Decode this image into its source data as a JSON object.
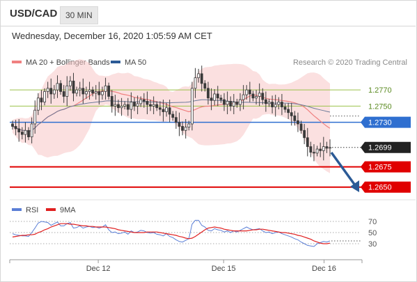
{
  "header": {
    "symbol": "USD/CAD",
    "timeframe": "30 MIN",
    "timestamp": "Wednesday, December 16, 2020 1:05:59 AM CET"
  },
  "legend": {
    "ma20": "MA 20 + Bollinger Bands",
    "ma50": "MA 50",
    "credit": "Research © 2020 Trading Central",
    "rsi": "RSI",
    "rsi_ma": "9MA"
  },
  "colors": {
    "up": "#3a3a3a",
    "down": "#3a3a3a",
    "bollinger": "#f7c6c6",
    "ma20": "#f08080",
    "ma50": "#6b7a99",
    "green_level": "#9bc24a",
    "blue_level": "#2f6fd0",
    "red_level": "#e00000",
    "arrow": "#2b5a96",
    "rsi": "#5b7fd6",
    "rsi_ma": "#e02020"
  },
  "chart_data": [
    {
      "type": "candlestick",
      "title": "USD/CAD",
      "ylim": [
        1.2636,
        1.2826
      ],
      "x_tick_labels": [
        "Dec 12",
        "Dec 15",
        "Dec 16"
      ],
      "levels": [
        {
          "value": 1.277,
          "label": "1.2770",
          "kind": "resistance"
        },
        {
          "value": 1.275,
          "label": "1.2750",
          "kind": "resistance"
        },
        {
          "value": 1.273,
          "label": "1.2730",
          "kind": "pivot"
        },
        {
          "value": 1.2699,
          "label": "1.2699",
          "kind": "last"
        },
        {
          "value": 1.2675,
          "label": "1.2675",
          "kind": "support"
        },
        {
          "value": 1.265,
          "label": "1.2650",
          "kind": "support"
        }
      ],
      "close": [
        1.2725,
        1.2722,
        1.2718,
        1.2715,
        1.272,
        1.2712,
        1.2728,
        1.2745,
        1.276,
        1.2755,
        1.2768,
        1.2772,
        1.2765,
        1.277,
        1.2778,
        1.2768,
        1.2762,
        1.2775,
        1.2781,
        1.2766,
        1.277,
        1.2772,
        1.2765,
        1.2768,
        1.277,
        1.2766,
        1.2768,
        1.2764,
        1.2768,
        1.2775,
        1.2762,
        1.275,
        1.2752,
        1.2748,
        1.275,
        1.2752,
        1.2746,
        1.2755,
        1.275,
        1.2753,
        1.2758,
        1.2756,
        1.2752,
        1.275,
        1.2752,
        1.2748,
        1.2746,
        1.2743,
        1.2748,
        1.274,
        1.2736,
        1.273,
        1.2725,
        1.272,
        1.2724,
        1.2728,
        1.2772,
        1.2785,
        1.279,
        1.2778,
        1.2772,
        1.276,
        1.2757,
        1.2765,
        1.276,
        1.2758,
        1.2752,
        1.2756,
        1.275,
        1.2755,
        1.2752,
        1.2758,
        1.2764,
        1.277,
        1.2765,
        1.276,
        1.2762,
        1.2766,
        1.2758,
        1.2753,
        1.2755,
        1.2749,
        1.2752,
        1.2755,
        1.2749,
        1.2746,
        1.2742,
        1.2738,
        1.2732,
        1.2728,
        1.272,
        1.2711,
        1.27,
        1.2693,
        1.2692,
        1.2697,
        1.2695,
        1.27,
        1.2698,
        1.2699
      ]
    },
    {
      "type": "line",
      "title": "RSI",
      "ylim": [
        10,
        80
      ],
      "y_ticks": [
        70,
        50,
        30
      ],
      "series": [
        {
          "name": "RSI",
          "values": [
            48,
            46,
            45,
            44,
            44,
            43,
            50,
            58,
            67,
            70,
            69,
            68,
            63,
            66,
            69,
            62,
            62,
            66,
            68,
            58,
            59,
            62,
            58,
            60,
            61,
            59,
            60,
            58,
            60,
            64,
            55,
            50,
            51,
            48,
            49,
            51,
            47,
            53,
            50,
            51,
            54,
            53,
            50,
            49,
            50,
            47,
            46,
            44,
            48,
            43,
            41,
            37,
            34,
            33,
            36,
            39,
            65,
            72,
            72,
            63,
            60,
            54,
            53,
            57,
            55,
            54,
            51,
            53,
            50,
            53,
            51,
            54,
            57,
            60,
            57,
            55,
            56,
            57,
            53,
            50,
            51,
            48,
            50,
            51,
            48,
            46,
            44,
            42,
            39,
            37,
            33,
            30,
            27,
            26,
            25,
            30,
            32,
            34,
            33,
            35
          ]
        },
        {
          "name": "9MA",
          "values": [
            42,
            43,
            44,
            45,
            45,
            46,
            46,
            47,
            50,
            52,
            55,
            57,
            60,
            62,
            64,
            66,
            66,
            66,
            65,
            65,
            64,
            63,
            62,
            62,
            61,
            61,
            60,
            60,
            60,
            60,
            59,
            58,
            57,
            55,
            54,
            53,
            52,
            51,
            50,
            50,
            50,
            50,
            51,
            51,
            51,
            51,
            50,
            49,
            48,
            47,
            46,
            45,
            43,
            42,
            40,
            39,
            40,
            43,
            47,
            51,
            55,
            58,
            59,
            60,
            59,
            58,
            56,
            55,
            54,
            53,
            53,
            53,
            53,
            53,
            54,
            55,
            55,
            56,
            56,
            55,
            54,
            53,
            52,
            51,
            50,
            50,
            49,
            48,
            47,
            45,
            44,
            42,
            40,
            38,
            35,
            33,
            31,
            30,
            30,
            31
          ]
        }
      ]
    }
  ]
}
